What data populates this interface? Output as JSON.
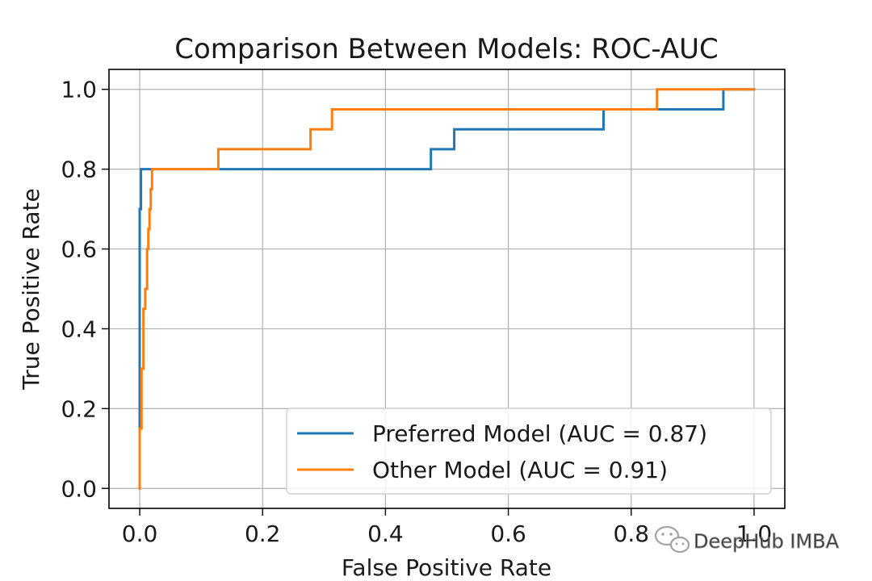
{
  "chart_data": {
    "type": "line",
    "title": "Comparison Between Models: ROC-AUC",
    "xlabel": "False Positive Rate",
    "ylabel": "True Positive Rate",
    "xlim": [
      -0.05,
      1.05
    ],
    "ylim": [
      -0.05,
      1.05
    ],
    "xticks": [
      0.0,
      0.2,
      0.4,
      0.6,
      0.8,
      1.0
    ],
    "yticks": [
      0.0,
      0.2,
      0.4,
      0.6,
      0.8,
      1.0
    ],
    "xtick_labels": [
      "0.0",
      "0.2",
      "0.4",
      "0.6",
      "0.8",
      "1.0"
    ],
    "ytick_labels": [
      "0.0",
      "0.2",
      "0.4",
      "0.6",
      "0.8",
      "1.0"
    ],
    "grid": true,
    "legend_position": "lower-right",
    "series": [
      {
        "name": "Preferred Model (AUC = 0.87)",
        "color": "#1f77b4",
        "x": [
          0.0,
          0.0,
          0.002,
          0.002,
          0.004,
          0.004,
          0.008,
          0.008,
          0.018,
          0.018,
          0.474,
          0.474,
          0.512,
          0.512,
          0.755,
          0.755,
          0.95,
          0.95,
          1.0
        ],
        "y": [
          0.0,
          0.7,
          0.7,
          0.8,
          0.8,
          0.8,
          0.8,
          0.8,
          0.8,
          0.8,
          0.8,
          0.85,
          0.85,
          0.9,
          0.9,
          0.95,
          0.95,
          1.0,
          1.0
        ]
      },
      {
        "name": "Other Model (AUC = 0.91)",
        "color": "#ff7f0e",
        "x": [
          0.0,
          0.0,
          0.003,
          0.003,
          0.006,
          0.006,
          0.009,
          0.009,
          0.012,
          0.012,
          0.014,
          0.014,
          0.016,
          0.016,
          0.018,
          0.018,
          0.02,
          0.02,
          0.128,
          0.128,
          0.278,
          0.278,
          0.313,
          0.313,
          0.842,
          0.842,
          1.0
        ],
        "y": [
          0.0,
          0.15,
          0.15,
          0.3,
          0.3,
          0.45,
          0.45,
          0.5,
          0.5,
          0.6,
          0.6,
          0.65,
          0.65,
          0.7,
          0.7,
          0.75,
          0.75,
          0.8,
          0.8,
          0.85,
          0.85,
          0.9,
          0.9,
          0.95,
          0.95,
          1.0,
          1.0
        ]
      }
    ]
  },
  "watermark": {
    "text": "DeepHub IMBA",
    "icon": "wechat-icon"
  }
}
